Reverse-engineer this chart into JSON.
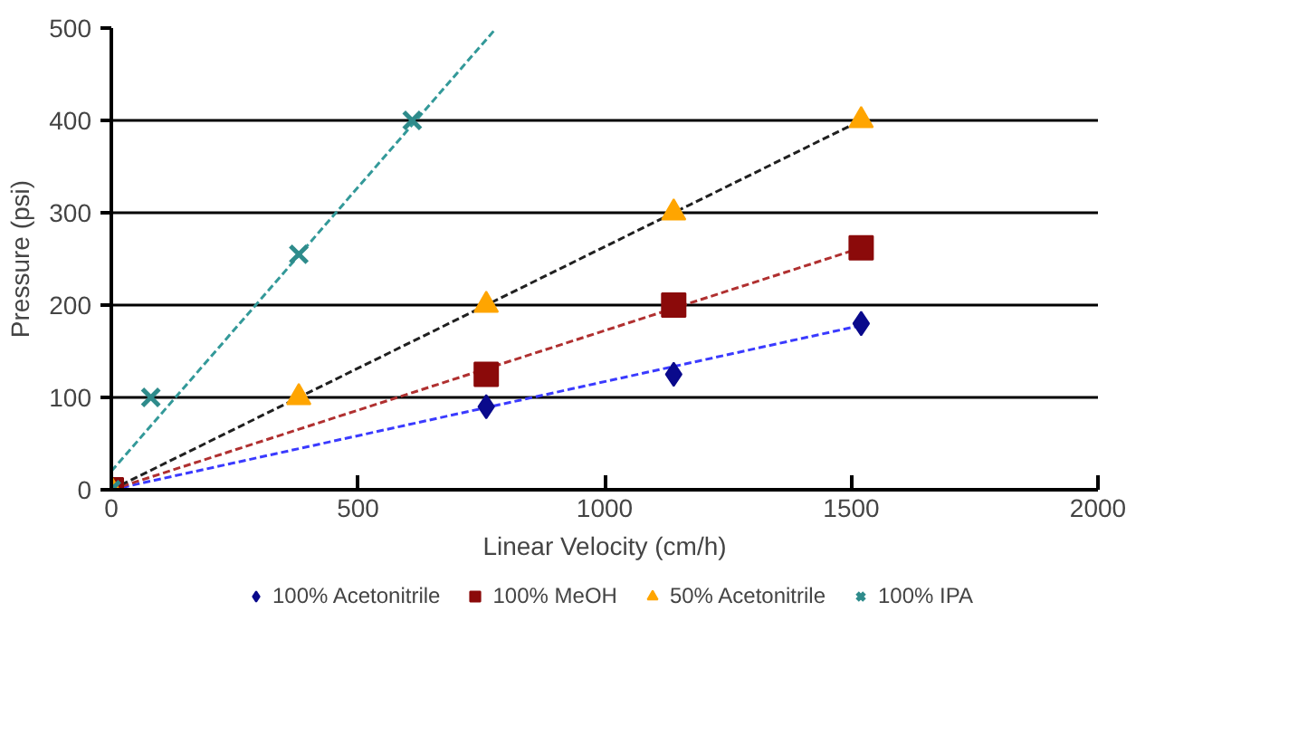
{
  "chart_data": {
    "type": "scatter",
    "xlabel": "Linear Velocity (cm/h)",
    "ylabel": "Pressure (psi)",
    "xlim": [
      0,
      2000
    ],
    "xticks": [
      0,
      500,
      1000,
      1500,
      2000
    ],
    "ylim": [
      0,
      500
    ],
    "yticks": [
      0,
      100,
      200,
      300,
      400,
      500
    ],
    "grid": "y",
    "legend": "bottom",
    "series": [
      {
        "name": "100% Acetonitrile",
        "color": "#0a0a8c",
        "marker": "diamond",
        "x": [
          760,
          1140,
          1520
        ],
        "values": [
          90,
          125,
          180
        ]
      },
      {
        "name": "100% MeOH",
        "color": "#8b0a0a",
        "marker": "square",
        "x": [
          0,
          760,
          1140,
          1520
        ],
        "values": [
          0,
          125,
          200,
          262
        ]
      },
      {
        "name": "50% Acetonitrile",
        "color": "#ffa500",
        "marker": "triangle",
        "x": [
          0,
          380,
          760,
          1140,
          1520
        ],
        "values": [
          0,
          100,
          200,
          300,
          400
        ]
      },
      {
        "name": "100% IPA",
        "color": "#2e8b8b",
        "marker": "cross",
        "x": [
          0,
          80,
          380,
          610
        ],
        "values": [
          0,
          100,
          255,
          400
        ]
      },
      {
        "type": "line",
        "color": "#3a3aff",
        "line_style": "dashed",
        "x": [
          0,
          1520
        ],
        "values": [
          0,
          178
        ]
      },
      {
        "type": "line",
        "color": "#b03030",
        "line_style": "dashed",
        "x": [
          0,
          1520
        ],
        "values": [
          0,
          262
        ]
      },
      {
        "type": "line",
        "color": "#202020",
        "line_style": "dashed",
        "x": [
          0,
          1520
        ],
        "values": [
          0,
          400
        ]
      },
      {
        "type": "line",
        "color": "#339999",
        "line_style": "dashed",
        "x": [
          0,
          777
        ],
        "values": [
          20,
          498
        ]
      }
    ]
  }
}
